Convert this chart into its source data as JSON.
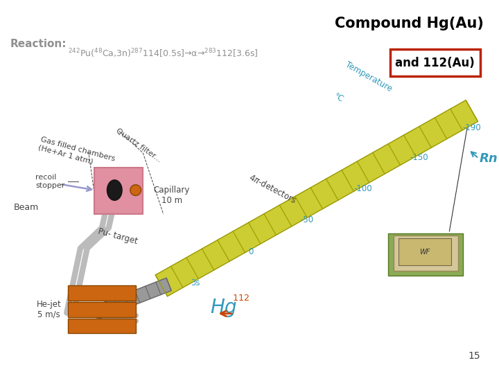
{
  "title": "Compound Hg(Au)",
  "title_color": "#000000",
  "title_fontsize": 15,
  "reaction_label": "Reaction:",
  "reaction_text": "$^{242}$Pu($^{48}$Ca,3n)$^{287}$114[0.5s]→α→$^{283}$112[3.6s]",
  "reaction_color": "#909090",
  "box_text": "and 112(Au)",
  "box_border_color": "#bb2200",
  "bg_color": "#ffffff",
  "page_number": "15",
  "colors": {
    "gray_text": "#808080",
    "blue_text": "#3399bb",
    "orange_text": "#cc4400",
    "pink_box": "#e090a0",
    "orange_box": "#cc6611",
    "yellow_strip": "#cccc33",
    "yellow_strip_edge": "#999900",
    "gray_strip": "#999999",
    "beam_color": "#9999cc",
    "pipe_color": "#bbbbbb",
    "dark_label": "#444444"
  }
}
